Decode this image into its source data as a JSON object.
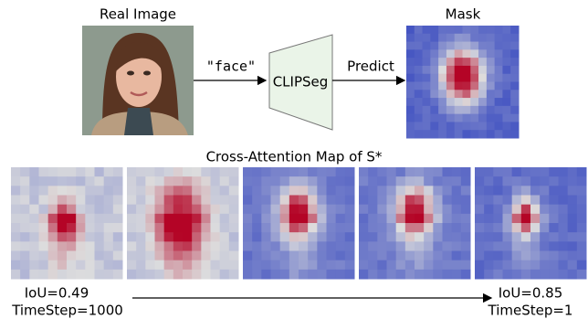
{
  "top": {
    "image_label": "Real Image",
    "prompt": "\"face\"",
    "model": "CLIPSeg",
    "predict": "Predict",
    "mask_label": "Mask"
  },
  "bottom": {
    "title": "Cross-Attention Map of S*",
    "start": {
      "iou": "IoU=0.49",
      "timestep": "TimeStep=1000"
    },
    "end": {
      "iou": "IoU=0.85",
      "timestep": "TimeStep=1"
    }
  }
}
